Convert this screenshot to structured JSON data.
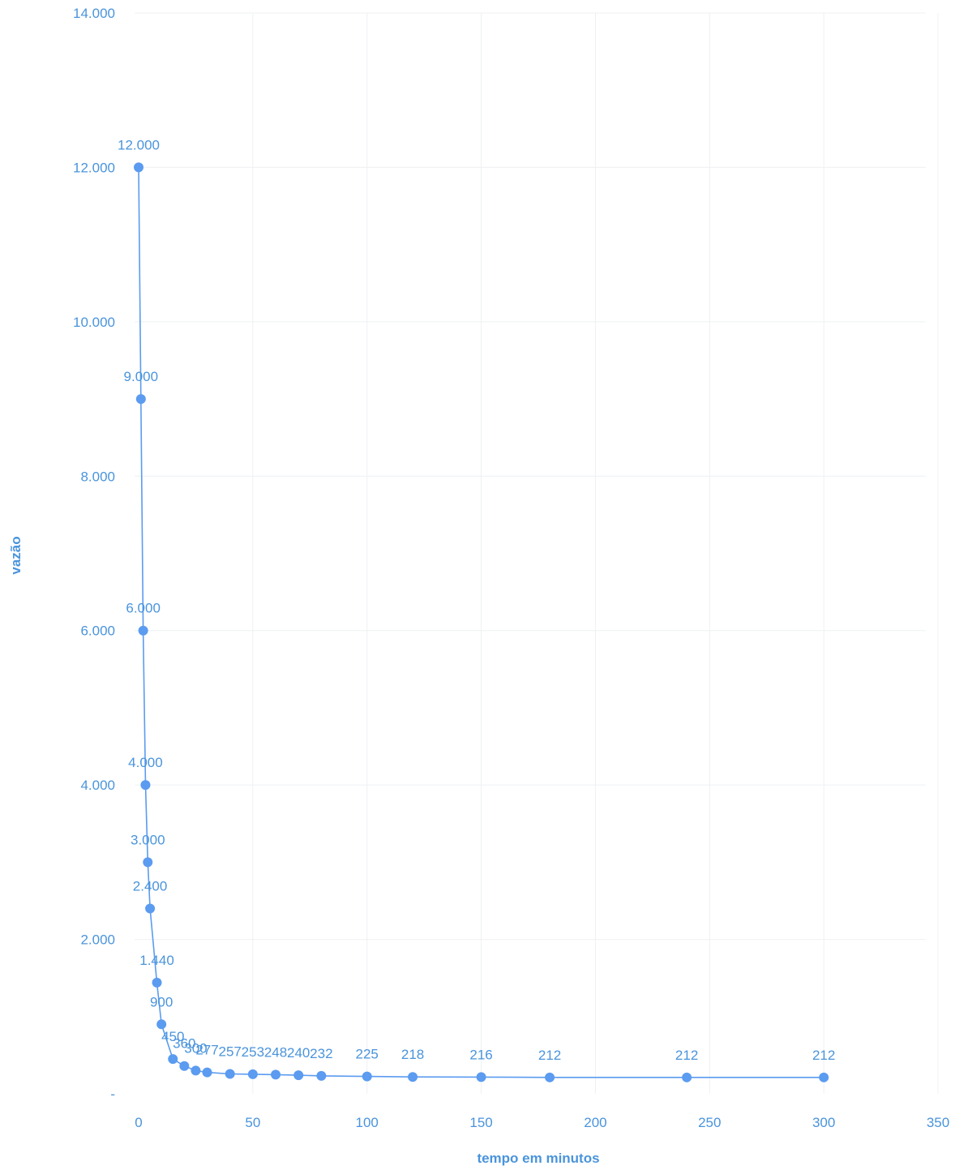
{
  "chart_data": {
    "type": "scatter",
    "title": "",
    "xlabel": "tempo em minutos",
    "ylabel": "vazão",
    "xlim": [
      0,
      350
    ],
    "ylim": [
      0,
      14000
    ],
    "x_ticks": [
      {
        "value": 0,
        "label": "0"
      },
      {
        "value": 50,
        "label": "50"
      },
      {
        "value": 100,
        "label": "100"
      },
      {
        "value": 150,
        "label": "150"
      },
      {
        "value": 200,
        "label": "200"
      },
      {
        "value": 250,
        "label": "250"
      },
      {
        "value": 300,
        "label": "300"
      },
      {
        "value": 350,
        "label": "350"
      }
    ],
    "y_ticks": [
      {
        "value": 0,
        "label": "-"
      },
      {
        "value": 2000,
        "label": "2.000"
      },
      {
        "value": 4000,
        "label": "4.000"
      },
      {
        "value": 6000,
        "label": "6.000"
      },
      {
        "value": 8000,
        "label": "8.000"
      },
      {
        "value": 10000,
        "label": "10.000"
      },
      {
        "value": 12000,
        "label": "12.000"
      },
      {
        "value": 14000,
        "label": "14.000"
      }
    ],
    "grid": true,
    "line_connected": true,
    "marker": "circle",
    "colors": {
      "series": "#5b9bf0",
      "text": "#4a94dc",
      "grid": "#eef0f3"
    },
    "series": [
      {
        "points": [
          {
            "x": 0,
            "y": 12000,
            "label": "12.000"
          },
          {
            "x": 1,
            "y": 9000,
            "label": "9.000"
          },
          {
            "x": 2,
            "y": 6000,
            "label": "6.000"
          },
          {
            "x": 3,
            "y": 4000,
            "label": "4.000"
          },
          {
            "x": 4,
            "y": 3000,
            "label": "3.000"
          },
          {
            "x": 5,
            "y": 2400,
            "label": "2.400"
          },
          {
            "x": 8,
            "y": 1440,
            "label": "1.440"
          },
          {
            "x": 10,
            "y": 900,
            "label": "900"
          },
          {
            "x": 15,
            "y": 450,
            "label": "450"
          },
          {
            "x": 20,
            "y": 360,
            "label": "360"
          },
          {
            "x": 25,
            "y": 300,
            "label": "300"
          },
          {
            "x": 30,
            "y": 277,
            "label": "277"
          },
          {
            "x": 40,
            "y": 257,
            "label": "257"
          },
          {
            "x": 50,
            "y": 253,
            "label": "253"
          },
          {
            "x": 60,
            "y": 248,
            "label": "248"
          },
          {
            "x": 70,
            "y": 240,
            "label": "240"
          },
          {
            "x": 80,
            "y": 232,
            "label": "232"
          },
          {
            "x": 100,
            "y": 225,
            "label": "225"
          },
          {
            "x": 120,
            "y": 218,
            "label": "218"
          },
          {
            "x": 150,
            "y": 216,
            "label": "216"
          },
          {
            "x": 180,
            "y": 212,
            "label": "212"
          },
          {
            "x": 240,
            "y": 212,
            "label": "212"
          },
          {
            "x": 300,
            "y": 212,
            "label": "212"
          }
        ]
      }
    ]
  }
}
